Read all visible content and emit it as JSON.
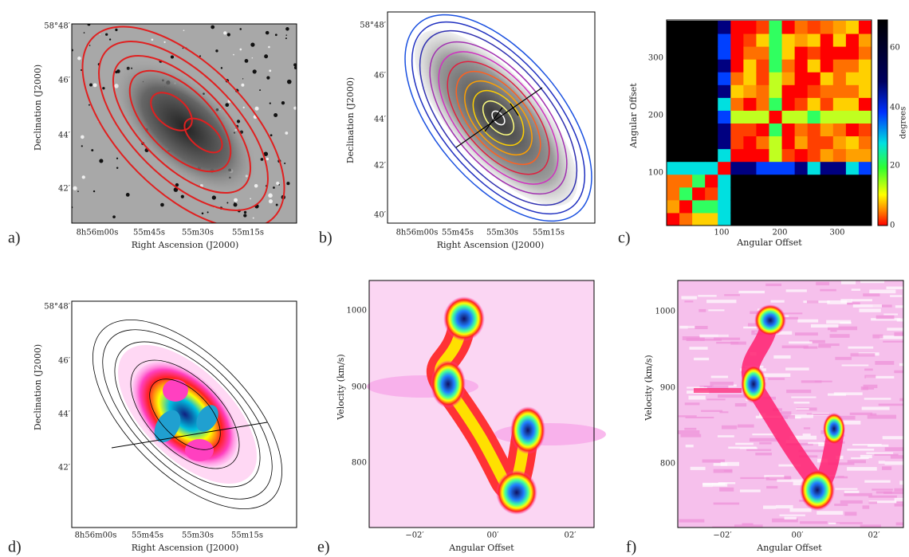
{
  "panels": [
    {
      "label": "a)",
      "x_label": "Right Ascension (J2000)",
      "y_label": "Declination (J2000)",
      "x_ticks": [
        "8h56m00s",
        "55m45s",
        "55m30s",
        "55m15s"
      ],
      "y_ticks": [
        "58°48′",
        "46′",
        "44′",
        "42′"
      ]
    },
    {
      "label": "b)",
      "x_label": "Right Ascension (J2000)",
      "y_label": "Declination (J2000)",
      "x_ticks": [
        "8h56m00s",
        "55m45s",
        "55m30s",
        "55m15s"
      ],
      "y_ticks": [
        "58°48′",
        "46′",
        "44′",
        "42′",
        "40′"
      ]
    },
    {
      "label": "c)",
      "x_label": "Angular Offset",
      "y_label": "Angular Offset",
      "x_ticks": [
        "100",
        "200",
        "300"
      ],
      "y_ticks": [
        "300",
        "200",
        "100"
      ],
      "colorbar_label": "degrees",
      "colorbar_ticks": [
        "60",
        "40",
        "20",
        "0"
      ]
    },
    {
      "label": "d)",
      "x_label": "Right Ascension (J2000)",
      "y_label": "Declination (J2000)",
      "x_ticks": [
        "8h56m00s",
        "55m45s",
        "55m30s",
        "55m15s"
      ],
      "y_ticks": [
        "58°48′",
        "46′",
        "44′",
        "42′"
      ]
    },
    {
      "label": "e)",
      "x_label": "Angular Offset",
      "y_label": "Velocity (km/s)",
      "x_ticks": [
        "−02′",
        "00′",
        "02′"
      ],
      "y_ticks": [
        "1000",
        "900",
        "800"
      ]
    },
    {
      "label": "f)",
      "x_label": "Angular Offset",
      "y_label": "Velocity (km/s)",
      "x_ticks": [
        "−02′",
        "00′",
        "02′"
      ],
      "y_ticks": [
        "1000",
        "900",
        "800"
      ]
    }
  ]
}
